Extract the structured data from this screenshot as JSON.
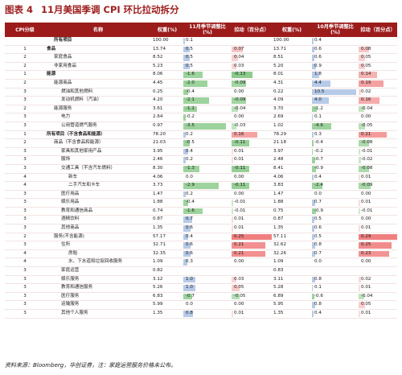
{
  "title": {
    "label": "图表 4",
    "text": "11月美国季调 CPI 环比拉动拆分"
  },
  "headers": [
    "CPI分级",
    "名称",
    "权重(%)",
    "11月季节调整比(%)",
    "拉动（百分点）",
    "权重(%)",
    "10月季节调整比(%)",
    "拉动（百分点）"
  ],
  "rows": [
    {
      "lv": "",
      "name": "所有项目",
      "ind": 1,
      "bold": true,
      "w11": "100.00",
      "s11": "0.1",
      "p11": "",
      "w10": "100.00",
      "s10": "0.4",
      "p10": ""
    },
    {
      "lv": "1",
      "name": "食品",
      "ind": 0,
      "bold": true,
      "w11": "13.74",
      "s11": "0.5",
      "p11": "0.07",
      "w10": "13.71",
      "s10": "0.6",
      "p10": "0.08"
    },
    {
      "lv": "2",
      "name": "家庭食品",
      "ind": 1,
      "bold": false,
      "w11": "8.52",
      "s11": "0.5",
      "p11": "0.04",
      "w10": "8.51",
      "s11b": "",
      "s10": "0.6",
      "p10": "0.05"
    },
    {
      "lv": "2",
      "name": "非家用食品",
      "ind": 1,
      "bold": false,
      "w11": "5.23",
      "s11": "0.5",
      "p11": "0.03",
      "w10": "5.20",
      "s10": "0.9",
      "p10": "0.05"
    },
    {
      "lv": "1",
      "name": "能源",
      "ind": 0,
      "bold": true,
      "w11": "8.06",
      "s11": "-1.6",
      "p11": "-0.13",
      "w10": "8.01",
      "s10": "1.8",
      "p10": "0.14"
    },
    {
      "lv": "2",
      "name": "能源商品",
      "ind": 1,
      "bold": false,
      "w11": "4.45",
      "s11": "-2.0",
      "p11": "-0.09",
      "w10": "4.31",
      "s10": "4.4",
      "p10": "0.19"
    },
    {
      "lv": "3",
      "name": "燃油和其他燃料",
      "ind": 2,
      "bold": false,
      "w11": "0.25",
      "s11": "-0.4",
      "p11": "0.00",
      "w10": "0.22",
      "s10": "10.5",
      "p10": "0.02"
    },
    {
      "lv": "3",
      "name": "发动机燃料（汽油）",
      "ind": 2,
      "bold": false,
      "w11": "4.20",
      "s11": "-2.1",
      "p11": "-0.09",
      "w10": "4.09",
      "s10": "4.0",
      "p10": "0.16"
    },
    {
      "lv": "2",
      "name": "能源服务",
      "ind": 1,
      "bold": false,
      "w11": "3.61",
      "s11": "-1.1",
      "p11": "-0.04",
      "w10": "3.70",
      "s10": "-1.2",
      "p10": "-0.04"
    },
    {
      "lv": "3",
      "name": "电力",
      "ind": 2,
      "bold": false,
      "w11": "2.64",
      "s11": "-0.2",
      "p11": "0.00",
      "w10": "2.69",
      "s10": "0.1",
      "p10": "0.00"
    },
    {
      "lv": "3",
      "name": "公用管道燃气服务",
      "ind": 2,
      "bold": false,
      "w11": "0.97",
      "s11": "-3.5",
      "p11": "-0.03",
      "w10": "1.02",
      "s10": "-4.6",
      "p10": "-0.05"
    },
    {
      "lv": "1",
      "name": "所有项目（不含食品和能源）",
      "ind": 0,
      "bold": true,
      "w11": "78.20",
      "s11": "0.2",
      "p11": "0.16",
      "w10": "78.29",
      "s10": "0.3",
      "p10": "0.21"
    },
    {
      "lv": "2",
      "name": "商品（不含食品和能源）",
      "ind": 1,
      "bold": false,
      "w11": "21.03",
      "s11": "-0.5",
      "p11": "-0.11",
      "w10": "21.18",
      "s10": "-0.4",
      "p10": "-0.08"
    },
    {
      "lv": "3",
      "name": "家具和其他家用产品",
      "ind": 2,
      "bold": false,
      "w11": "3.95",
      "s11": "0.4",
      "p11": "0.01",
      "w10": "3.97",
      "s10": "-0.2",
      "p10": "-0.01"
    },
    {
      "lv": "3",
      "name": "服饰",
      "ind": 2,
      "bold": false,
      "w11": "2.46",
      "s11": "0.2",
      "p11": "0.01",
      "w10": "2.48",
      "s10": "-0.7",
      "p10": "-0.02"
    },
    {
      "lv": "3",
      "name": "交通工具（不含汽车燃料）",
      "ind": 2,
      "bold": false,
      "w11": "8.30",
      "s11": "-1.3",
      "p11": "-0.11",
      "w10": "8.41",
      "s10": "-0.9",
      "p10": "-0.08"
    },
    {
      "lv": "4",
      "name": "新车",
      "ind": 3,
      "bold": false,
      "w11": "4.06",
      "s11": "0.0",
      "p11": "0.00",
      "w10": "4.06",
      "s10": "0.4",
      "p10": "0.01"
    },
    {
      "lv": "4",
      "name": "二手汽车和卡车",
      "ind": 3,
      "bold": false,
      "w11": "3.73",
      "s11": "-2.9",
      "p11": "-0.11",
      "w10": "3.83",
      "s10": "-2.4",
      "p10": "-0.09"
    },
    {
      "lv": "3",
      "name": "医疗用品",
      "ind": 2,
      "bold": false,
      "w11": "1.47",
      "s11": "0.2",
      "p11": "0.00",
      "w10": "1.47",
      "s10": "0.0",
      "p10": "0.00"
    },
    {
      "lv": "3",
      "name": "娱乐用品",
      "ind": 2,
      "bold": false,
      "w11": "1.88",
      "s11": "-0.4",
      "p11": "-0.01",
      "w10": "1.88",
      "s10": "0.7",
      "p10": "0.01"
    },
    {
      "lv": "3",
      "name": "教育和通信商品",
      "ind": 2,
      "bold": false,
      "w11": "0.74",
      "s11": "-1.6",
      "p11": "-0.01",
      "w10": "0.75",
      "s10": "-0.9",
      "p10": "-0.01"
    },
    {
      "lv": "3",
      "name": "酒精饮料",
      "ind": 2,
      "bold": false,
      "w11": "0.87",
      "s11": "0.7",
      "p11": "0.01",
      "w10": "0.87",
      "s10": "0.5",
      "p10": "0.00"
    },
    {
      "lv": "3",
      "name": "其他商品",
      "ind": 2,
      "bold": false,
      "w11": "1.35",
      "s11": "0.6",
      "p11": "0.01",
      "w10": "1.35",
      "s10": "0.6",
      "p10": "0.01"
    },
    {
      "lv": "2",
      "name": "服务(不含能源)",
      "ind": 1,
      "bold": false,
      "w11": "57.17",
      "s11": "0.4",
      "p11": "0.25",
      "w10": "57.11",
      "s10": "0.5",
      "p10": "0.29"
    },
    {
      "lv": "3",
      "name": "住所",
      "ind": 2,
      "bold": false,
      "w11": "32.71",
      "s11": "0.6",
      "p11": "0.21",
      "w10": "32.62",
      "s10": "0.8",
      "p10": "0.25"
    },
    {
      "lv": "4",
      "name": "房租",
      "ind": 3,
      "bold": false,
      "w11": "32.35",
      "s11": "0.6",
      "p11": "0.21",
      "w10": "32.26",
      "s10": "0.7",
      "p10": "0.23"
    },
    {
      "lv": "4",
      "name": "水、下水道和垃圾回收服务",
      "ind": 3,
      "bold": false,
      "w11": "1.09",
      "s11": "0.3",
      "p11": "0.00",
      "w10": "1.09",
      "s10": "0.0",
      "p10": "0.00"
    },
    {
      "lv": "3",
      "name": "家庭运营",
      "ind": 2,
      "bold": false,
      "w11": "0.82",
      "s11": "",
      "p11": "",
      "w10": "0.83",
      "s10": "",
      "p10": ""
    },
    {
      "lv": "3",
      "name": "娱乐服务",
      "ind": 2,
      "bold": false,
      "w11": "3.12",
      "s11": "1.0",
      "p11": "0.03",
      "w10": "3.11",
      "s10": "0.8",
      "p10": "0.02"
    },
    {
      "lv": "3",
      "name": "教育和通信服务",
      "ind": 2,
      "bold": false,
      "w11": "5.26",
      "s11": "1.0",
      "p11": "0.05",
      "w10": "5.28",
      "s10": "0.1",
      "p10": "0.01"
    },
    {
      "lv": "3",
      "name": "医疗服务",
      "ind": 2,
      "bold": false,
      "w11": "6.83",
      "s11": "-0.7",
      "p11": "-0.05",
      "w10": "6.89",
      "s10": "-0.6",
      "p10": "-0.04"
    },
    {
      "lv": "3",
      "name": "运输服务",
      "ind": 2,
      "bold": false,
      "w11": "5.99",
      "s11": "0.0",
      "p11": "0.00",
      "w10": "5.95",
      "s10": "0.8",
      "p10": "0.05"
    },
    {
      "lv": "3",
      "name": "其他个人服务",
      "ind": 2,
      "bold": false,
      "w11": "1.35",
      "s11": "0.8",
      "p11": "0.01",
      "w10": "1.35",
      "s10": "0.4",
      "p10": "0.01"
    }
  ],
  "source": "资料来源：Bloomberg，华创证券，注：家庭运营服务价格未公布。",
  "colors": {
    "accent": "#9c1c1c",
    "pos": "#f08080",
    "neg": "#4cae4c",
    "bar": "#7b9fd6"
  }
}
